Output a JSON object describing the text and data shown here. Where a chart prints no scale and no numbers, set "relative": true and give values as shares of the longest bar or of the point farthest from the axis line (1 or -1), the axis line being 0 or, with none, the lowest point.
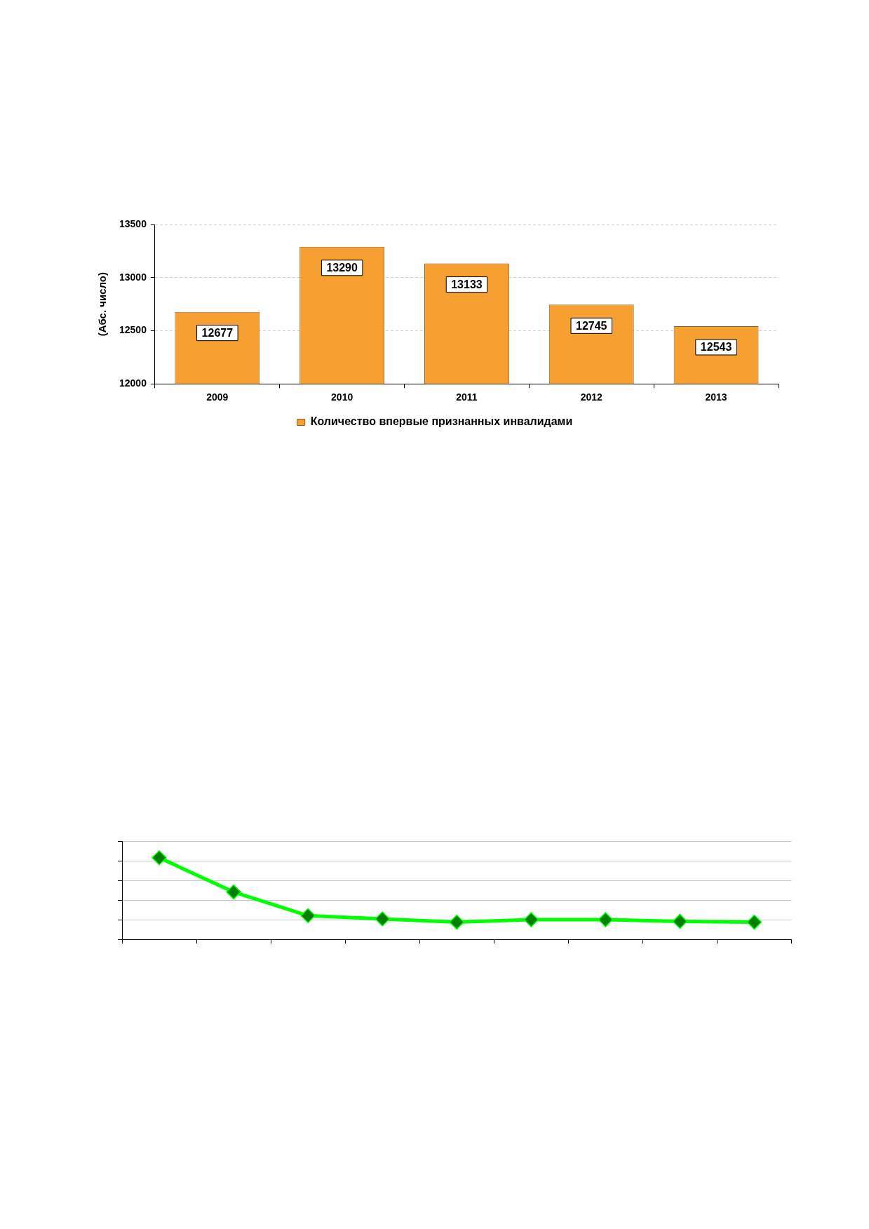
{
  "chart_data": [
    {
      "type": "bar",
      "ylabel": "(Абс. число)",
      "categories": [
        "2009",
        "2010",
        "2011",
        "2012",
        "2013"
      ],
      "series": [
        {
          "name": "Количество впервые признанных инвалидами",
          "color": "#f5a030",
          "values": [
            12677,
            13290,
            13133,
            12745,
            12543
          ]
        }
      ],
      "ylim": [
        12000,
        13500
      ],
      "yticks": [
        12000,
        12500,
        13000,
        13500
      ],
      "grid": "y",
      "legend": "bottom",
      "data_labels": true
    },
    {
      "type": "line",
      "categories": [
        null,
        null,
        null,
        null,
        null,
        null,
        null,
        null,
        null
      ],
      "series": [
        {
          "color": "#00ff00",
          "values": [
            1,
            0.58,
            0.29,
            0.25,
            0.21,
            0.24,
            0.24,
            0.22,
            0.21
          ]
        }
      ],
      "relative": true,
      "grid": "y",
      "tick_labels": false,
      "marker": "diamond",
      "line_style": "solid"
    }
  ]
}
